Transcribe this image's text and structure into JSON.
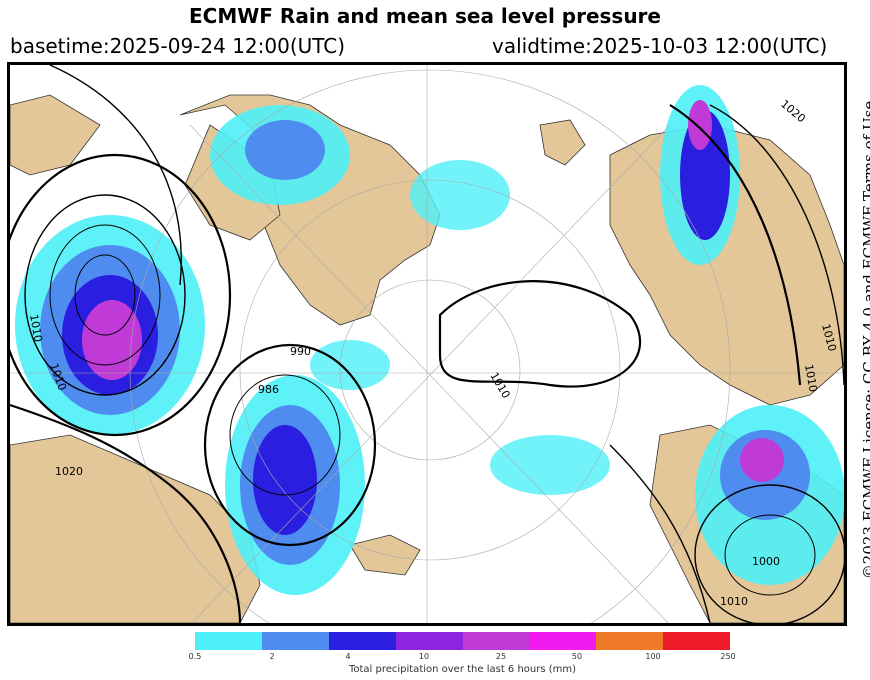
{
  "header": {
    "title": "ECMWF Rain and mean sea level pressure",
    "basetime": "basetime:2025-09-24 12:00(UTC)",
    "validtime": "validtime:2025-10-03 12:00(UTC)"
  },
  "licence": "©2023 ECMWF Licence: CC BY 4.0 and ECMWF Terms of Use",
  "map": {
    "projection": "polar-stereographic",
    "isobar_labels": [
      "1020",
      "1010",
      "990",
      "986",
      "1010",
      "1010",
      "1020",
      "1010",
      "1010",
      "1000",
      "1010"
    ],
    "colors": {
      "land": "#e3c799",
      "sea": "#ffffff",
      "isobar": "#000000"
    }
  },
  "legend": {
    "bins": [
      {
        "color": "#4ef0f7"
      },
      {
        "color": "#4f8cf0"
      },
      {
        "color": "#2a1ee0"
      },
      {
        "color": "#8c24e0"
      },
      {
        "color": "#c03ad8"
      },
      {
        "color": "#f019f0"
      },
      {
        "color": "#f07a28"
      },
      {
        "color": "#ee1c2a"
      }
    ],
    "ticks": [
      "0.5",
      "2",
      "4",
      "10",
      "25",
      "50",
      "100",
      "250"
    ],
    "caption": "Total precipitation over the last 6 hours (mm)"
  }
}
